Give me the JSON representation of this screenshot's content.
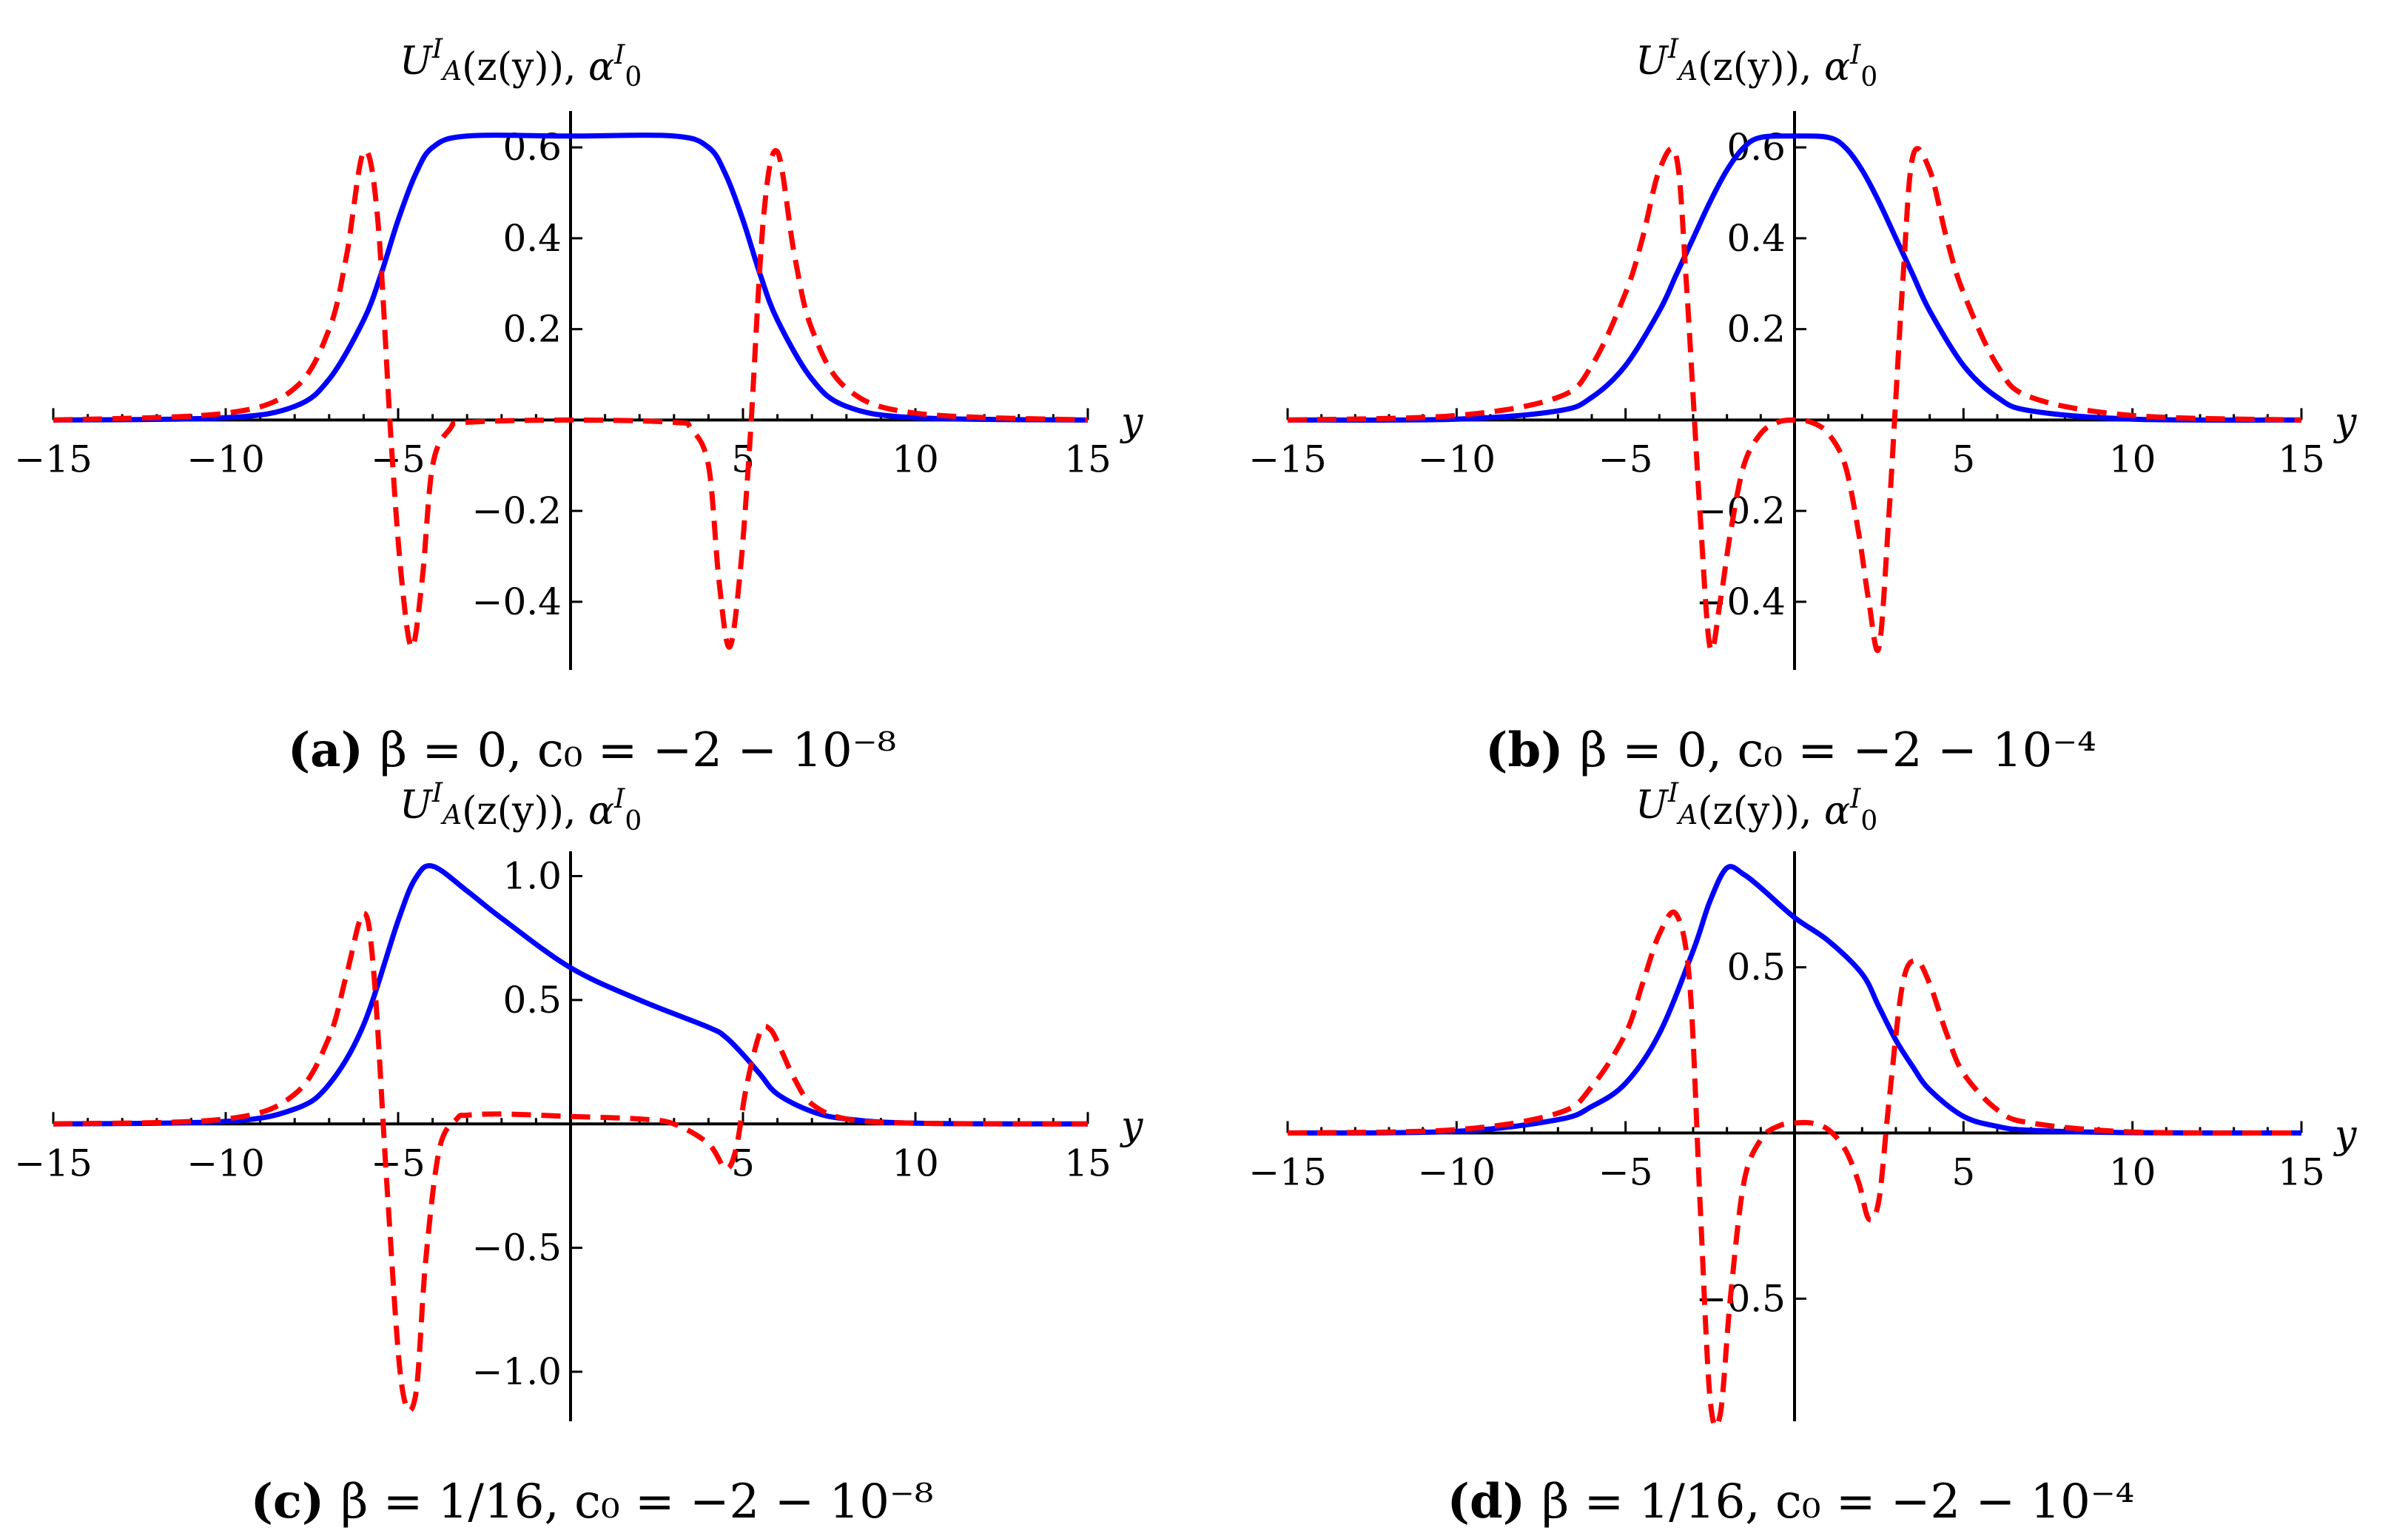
{
  "chart_data": [
    {
      "id": "a",
      "type": "line",
      "ylabel": "U^I_A(z(y)), α^I_0",
      "xlabel": "y",
      "xlim": [
        -15,
        15
      ],
      "ylim": [
        -0.55,
        0.68
      ],
      "x_ticks": [
        "−15",
        "−10",
        "−5",
        "5",
        "10",
        "15"
      ],
      "x_tick_values": [
        -15,
        -10,
        -5,
        5,
        10,
        15
      ],
      "y_ticks": [
        "−0.4",
        "−0.2",
        "0.2",
        "0.4",
        "0.6"
      ],
      "y_tick_values": [
        -0.4,
        -0.2,
        0.2,
        0.4,
        0.6
      ],
      "caption": {
        "label": "(a)",
        "text": "β = 0, c₀ = −2 − 10⁻⁸"
      },
      "series": [
        {
          "style": "solid",
          "color": "#0000ff",
          "x": [
            -15,
            -10,
            -8,
            -7,
            -6,
            -5.5,
            -5,
            -4.5,
            -4,
            -3,
            0,
            3,
            4,
            4.5,
            5,
            5.5,
            6,
            7,
            8,
            10,
            15
          ],
          "y": [
            0.0,
            0.005,
            0.03,
            0.09,
            0.22,
            0.32,
            0.44,
            0.54,
            0.6,
            0.625,
            0.625,
            0.625,
            0.6,
            0.54,
            0.44,
            0.32,
            0.22,
            0.09,
            0.03,
            0.005,
            0.0
          ]
        },
        {
          "style": "dashed",
          "color": "#ff0000",
          "x": [
            -15,
            -10,
            -8,
            -7,
            -6.5,
            -6,
            -5.6,
            -5.2,
            -4.9,
            -4.6,
            -4.3,
            -4,
            -3.5,
            -3,
            0,
            3,
            3.5,
            4,
            4.3,
            4.6,
            4.9,
            5.2,
            5.6,
            6,
            6.5,
            7,
            8,
            10,
            15
          ],
          "y": [
            0.0,
            0.015,
            0.07,
            0.2,
            0.36,
            0.59,
            0.45,
            -0.05,
            -0.35,
            -0.5,
            -0.35,
            -0.1,
            -0.02,
            -0.005,
            0.0,
            -0.005,
            -0.02,
            -0.1,
            -0.35,
            -0.5,
            -0.35,
            -0.05,
            0.45,
            0.59,
            0.36,
            0.2,
            0.07,
            0.015,
            0.0
          ]
        }
      ]
    },
    {
      "id": "b",
      "type": "line",
      "ylabel": "U^I_A(z(y)), α^I_0",
      "xlabel": "y",
      "xlim": [
        -15,
        15
      ],
      "ylim": [
        -0.55,
        0.68
      ],
      "x_ticks": [
        "−15",
        "−10",
        "−5",
        "5",
        "10",
        "15"
      ],
      "x_tick_values": [
        -15,
        -10,
        -5,
        5,
        10,
        15
      ],
      "y_ticks": [
        "−0.4",
        "−0.2",
        "0.2",
        "0.4",
        "0.6"
      ],
      "y_tick_values": [
        -0.4,
        -0.2,
        0.2,
        0.4,
        0.6
      ],
      "caption": {
        "label": "(b)",
        "text": "β = 0, c₀ = −2 − 10⁻⁴"
      },
      "series": [
        {
          "style": "solid",
          "color": "#0000ff",
          "x": [
            -15,
            -10,
            -7,
            -6,
            -5,
            -4,
            -3.5,
            -3,
            -2.5,
            -2,
            -1.5,
            -1,
            0,
            1,
            1.5,
            2,
            2.5,
            3,
            3.5,
            4,
            5,
            6,
            7,
            10,
            15
          ],
          "y": [
            0.0,
            0.002,
            0.02,
            0.05,
            0.12,
            0.24,
            0.32,
            0.4,
            0.48,
            0.55,
            0.6,
            0.622,
            0.625,
            0.622,
            0.6,
            0.55,
            0.48,
            0.4,
            0.32,
            0.24,
            0.12,
            0.05,
            0.02,
            0.002,
            0.0
          ]
        },
        {
          "style": "dashed",
          "color": "#ff0000",
          "x": [
            -15,
            -10,
            -7,
            -6,
            -5,
            -4.5,
            -4,
            -3.5,
            -3.2,
            -2.8,
            -2.5,
            -2.2,
            -1.9,
            -1.5,
            -1,
            -0.5,
            0,
            0.5,
            1,
            1.5,
            1.9,
            2.2,
            2.5,
            2.8,
            3.2,
            3.5,
            4,
            4.5,
            5,
            6,
            7,
            10,
            15
          ],
          "y": [
            0.0,
            0.01,
            0.05,
            0.12,
            0.28,
            0.4,
            0.55,
            0.58,
            0.3,
            -0.2,
            -0.5,
            -0.4,
            -0.25,
            -0.1,
            -0.03,
            -0.005,
            0.0,
            -0.005,
            -0.03,
            -0.1,
            -0.25,
            -0.4,
            -0.5,
            -0.2,
            0.3,
            0.58,
            0.55,
            0.4,
            0.28,
            0.12,
            0.05,
            0.01,
            0.0
          ]
        }
      ]
    },
    {
      "id": "c",
      "type": "line",
      "ylabel": "U^I_A(z(y)), α^I_0",
      "xlabel": "y",
      "xlim": [
        -15,
        15
      ],
      "ylim": [
        -1.2,
        1.1
      ],
      "x_ticks": [
        "−15",
        "−10",
        "−5",
        "5",
        "10",
        "15"
      ],
      "x_tick_values": [
        -15,
        -10,
        -5,
        5,
        10,
        15
      ],
      "y_ticks": [
        "−1.0",
        "−0.5",
        "0.5",
        "1.0"
      ],
      "y_tick_values": [
        -1.0,
        -0.5,
        0.5,
        1.0
      ],
      "caption": {
        "label": "(c)",
        "text": "β = 1/16, c₀ = −2 − 10⁻⁸"
      },
      "series": [
        {
          "style": "solid",
          "color": "#0000ff",
          "x": [
            -15,
            -10,
            -8,
            -7,
            -6,
            -5,
            -4.5,
            -4,
            -3,
            -2,
            0,
            2,
            4,
            4.5,
            5,
            5.5,
            6,
            7,
            8,
            10,
            15
          ],
          "y": [
            0.0,
            0.01,
            0.06,
            0.16,
            0.4,
            0.82,
            0.99,
            1.04,
            0.94,
            0.83,
            0.63,
            0.5,
            0.39,
            0.35,
            0.28,
            0.2,
            0.12,
            0.05,
            0.02,
            0.003,
            0.0
          ]
        },
        {
          "style": "dashed",
          "color": "#ff0000",
          "x": [
            -15,
            -10,
            -8,
            -7,
            -6.5,
            -6,
            -5.7,
            -5.3,
            -4.9,
            -4.5,
            -4.2,
            -3.8,
            -3.3,
            -3,
            -2,
            0,
            2,
            3,
            4,
            4.5,
            4.8,
            5.1,
            5.5,
            5.8,
            6.1,
            6.5,
            7,
            8,
            10,
            15
          ],
          "y": [
            0.0,
            0.02,
            0.12,
            0.35,
            0.6,
            0.85,
            0.6,
            -0.3,
            -1.05,
            -1.1,
            -0.55,
            -0.1,
            0.02,
            0.035,
            0.04,
            0.03,
            0.02,
            0.0,
            -0.08,
            -0.18,
            -0.1,
            0.15,
            0.37,
            0.38,
            0.3,
            0.18,
            0.08,
            0.02,
            0.003,
            0.0
          ]
        }
      ]
    },
    {
      "id": "d",
      "type": "line",
      "ylabel": "U^I_A(z(y)), α^I_0",
      "xlabel": "y",
      "xlim": [
        -15,
        15
      ],
      "ylim": [
        -0.87,
        0.85
      ],
      "x_ticks": [
        "−15",
        "−10",
        "−5",
        "5",
        "10",
        "15"
      ],
      "x_tick_values": [
        -15,
        -10,
        -5,
        5,
        10,
        15
      ],
      "y_ticks": [
        "−0.5",
        "0.5"
      ],
      "y_tick_values": [
        -0.5,
        0.5
      ],
      "caption": {
        "label": "(d)",
        "text": "β = 1/16, c₀ = −2 − 10⁻⁴"
      },
      "series": [
        {
          "style": "solid",
          "color": "#0000ff",
          "x": [
            -15,
            -10,
            -7,
            -6,
            -5,
            -4,
            -3,
            -2.5,
            -2,
            -1.5,
            -1,
            0,
            1,
            2,
            2.5,
            3,
            3.5,
            4,
            5,
            6,
            7,
            10,
            15
          ],
          "y": [
            0.0,
            0.005,
            0.04,
            0.08,
            0.15,
            0.3,
            0.55,
            0.7,
            0.8,
            0.78,
            0.74,
            0.65,
            0.58,
            0.48,
            0.38,
            0.28,
            0.2,
            0.13,
            0.05,
            0.02,
            0.008,
            0.001,
            0.0
          ]
        },
        {
          "style": "dashed",
          "color": "#ff0000",
          "x": [
            -15,
            -10,
            -7,
            -6,
            -5,
            -4.5,
            -4,
            -3.5,
            -3.1,
            -2.8,
            -2.5,
            -2.2,
            -1.9,
            -1.5,
            -1,
            -0.5,
            0,
            0.5,
            1,
            1.5,
            1.9,
            2.2,
            2.5,
            2.8,
            3.2,
            3.6,
            4,
            4.5,
            5,
            6,
            7,
            10,
            15
          ],
          "y": [
            0.0,
            0.01,
            0.06,
            0.14,
            0.3,
            0.45,
            0.6,
            0.66,
            0.45,
            -0.2,
            -0.8,
            -0.85,
            -0.5,
            -0.15,
            -0.02,
            0.02,
            0.03,
            0.03,
            0.01,
            -0.05,
            -0.15,
            -0.26,
            -0.2,
            0.1,
            0.45,
            0.52,
            0.45,
            0.3,
            0.18,
            0.07,
            0.03,
            0.003,
            0.0
          ]
        }
      ]
    }
  ]
}
